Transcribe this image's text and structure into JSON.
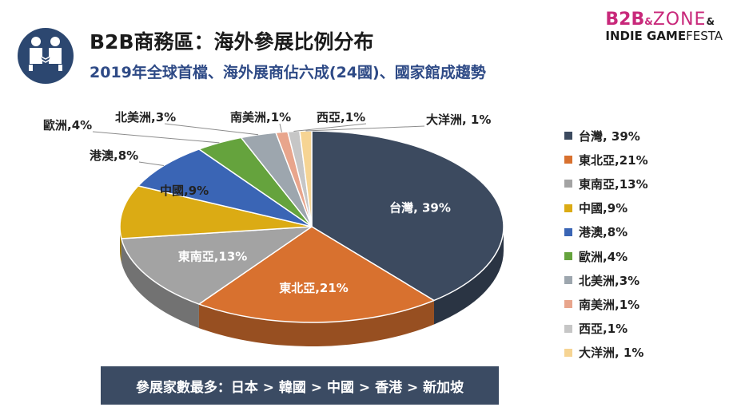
{
  "header": {
    "title": "B2B商務區：海外參展比例分布",
    "subtitle": "2019年全球首檔、海外展商佔六成(24國)、國家館成趨勢"
  },
  "logo": {
    "part1": "B2B",
    "amp1": "&",
    "part2": "ZONE",
    "amp2": "&",
    "part3": "INDIE GAME",
    "part4": "FESTA"
  },
  "chart_data": {
    "type": "pie",
    "title": "",
    "categories": [
      "台灣",
      "東北亞",
      "東南亞",
      "中國",
      "港澳",
      "歐洲",
      "北美洲",
      "南美洲",
      "西亞",
      "大洋洲"
    ],
    "values": [
      39,
      21,
      13,
      9,
      8,
      4,
      3,
      1,
      1,
      1
    ],
    "data_labels": [
      "台灣, 39%",
      "東北亞,21%",
      "東南亞,13%",
      "中國,9%",
      "港澳,8%",
      "歐洲,4%",
      "北美洲,3%",
      "南美洲,1%",
      "西亞,1%",
      "大洋洲, 1%"
    ],
    "legend": {
      "position": "right",
      "entries": [
        "台灣, 39%",
        "東北亞,21%",
        "東南亞,13%",
        "中國,9%",
        "港澳,8%",
        "歐洲,4%",
        "北美洲,3%",
        "南美洲,1%",
        "西亞,1%",
        "大洋洲, 1%"
      ]
    },
    "colors": [
      "#3c4a5f",
      "#d8712f",
      "#a3a3a3",
      "#dbab14",
      "#3a65b5",
      "#65a33d",
      "#9da6ae",
      "#e8a58c",
      "#c6c6c6",
      "#f6d493"
    ],
    "style": "3d-tilted"
  },
  "note": "參展家數最多：日本 > 韓國 > 中國 > 香港 > 新加坡"
}
